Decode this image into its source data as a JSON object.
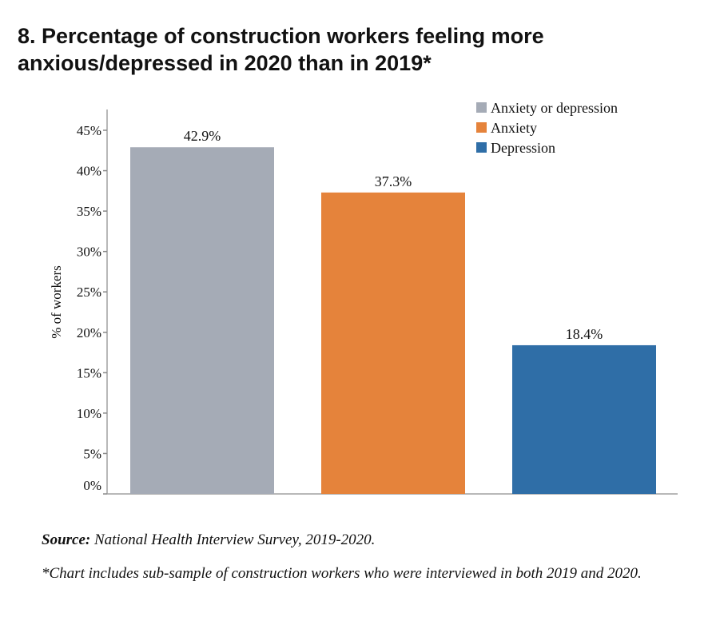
{
  "title": "8. Percentage of construction workers feeling more anxious/depressed in 2020 than in 2019*",
  "source_label": "Source:",
  "source_text": " National Health Interview Survey, 2019-2020.",
  "footnote": "*Chart includes sub-sample of construction workers who were interviewed in both 2019 and 2020.",
  "chart_data": {
    "type": "bar",
    "title": "8. Percentage of construction workers feeling more anxious/depressed in 2020 than in 2019*",
    "ylabel": "% of workers",
    "xlabel": "",
    "ylim": [
      0,
      45
    ],
    "yticks": [
      "0%",
      "5%",
      "10%",
      "15%",
      "20%",
      "25%",
      "30%",
      "35%",
      "40%",
      "45%"
    ],
    "grid": false,
    "legend_position": "top-right",
    "series": [
      {
        "name": "Anxiety or depression",
        "value": 42.9,
        "label": "42.9%",
        "color": "#a5abb6"
      },
      {
        "name": "Anxiety",
        "value": 37.3,
        "label": "37.3%",
        "color": "#e5833b"
      },
      {
        "name": "Depression",
        "value": 18.4,
        "label": "18.4%",
        "color": "#2f6ea7"
      }
    ]
  }
}
